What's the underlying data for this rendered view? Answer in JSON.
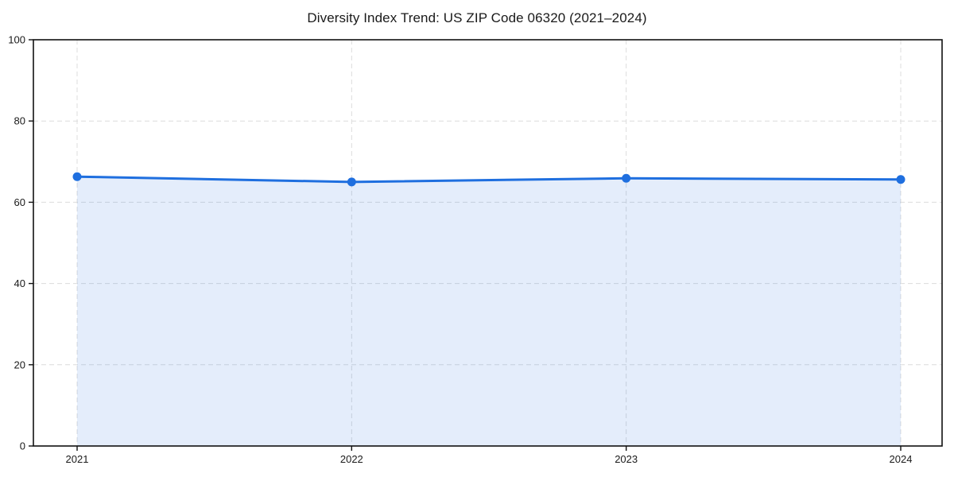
{
  "figure": {
    "background": "#ffffff"
  },
  "chart_data": {
    "type": "line",
    "title": "Diversity Index Trend: US ZIP Code 06320 (2021–2024)",
    "categories": [
      "2021",
      "2022",
      "2023",
      "2024"
    ],
    "series": [
      {
        "name": "Diversity Index",
        "values": [
          66.3,
          65.0,
          65.9,
          65.6
        ]
      }
    ],
    "ylim": [
      0,
      100
    ],
    "yticks": [
      0,
      20,
      40,
      60,
      80,
      100
    ],
    "xlabel": "",
    "ylabel": "",
    "legend": "none",
    "grid": true,
    "grid_style": "dashed",
    "marker": "circle",
    "line_color": "#1f6fdf",
    "fill_opacity": 0.12,
    "grid_color": "#dcdcdc",
    "axis_color": "#111111",
    "text_color": "#1a1a1a"
  }
}
